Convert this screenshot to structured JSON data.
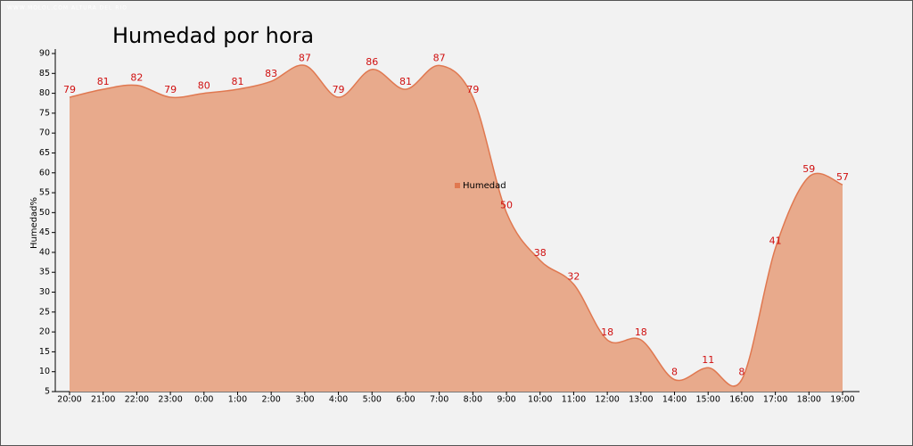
{
  "watermark": "WWW.MOLOL.COM ALTURA DEL RIO",
  "chart_data": {
    "type": "area",
    "title": "Humedad por hora",
    "y_label": "Humedad%",
    "categories": [
      "20:00",
      "21:00",
      "22:00",
      "23:00",
      "0:00",
      "1:00",
      "2:00",
      "3:00",
      "4:00",
      "5:00",
      "6:00",
      "7:00",
      "8:00",
      "9:00",
      "10:00",
      "11:00",
      "12:00",
      "13:00",
      "14:00",
      "15:00",
      "16:00",
      "17:00",
      "18:00",
      "19:00"
    ],
    "series": [
      {
        "name": "Humedad",
        "color": "#e07850",
        "values": [
          79,
          81,
          82,
          79,
          80,
          81,
          83,
          87,
          79,
          86,
          81,
          87,
          79,
          50,
          38,
          32,
          18,
          18,
          8,
          11,
          8,
          41,
          59,
          57
        ]
      }
    ],
    "ylim": [
      5,
      90
    ],
    "yticks": [
      5,
      10,
      15,
      20,
      25,
      30,
      35,
      40,
      45,
      50,
      55,
      60,
      65,
      70,
      75,
      80,
      85,
      90
    ]
  }
}
